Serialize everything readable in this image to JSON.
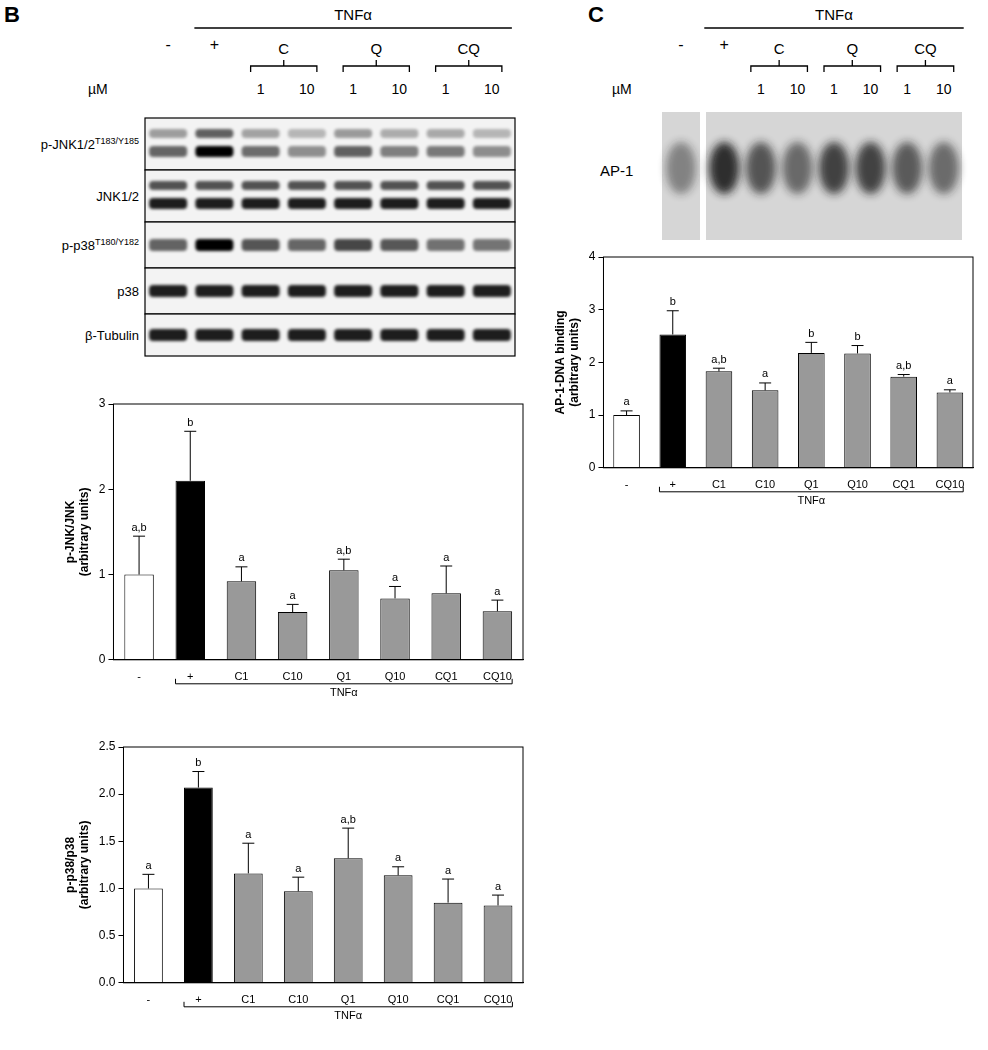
{
  "panel_labels": [
    "B",
    "C"
  ],
  "blot": {
    "header": {
      "treatment": "TNFα",
      "control": "-",
      "positive": "+",
      "unit": "µM",
      "groups": [
        "C",
        "Q",
        "CQ"
      ],
      "doses": [
        1,
        10
      ]
    },
    "rows": [
      {
        "label": "p-JNK1/2",
        "superscript": "T183/Y185"
      },
      {
        "label": "JNK1/2"
      },
      {
        "label": "p-p38",
        "superscript": "T180/Y182"
      },
      {
        "label": "p38"
      },
      {
        "label": "β-Tubulin"
      }
    ]
  },
  "emsa": {
    "header": {
      "treatment": "TNFα",
      "control": "-",
      "positive": "+",
      "unit": "µM",
      "groups": [
        "C",
        "Q",
        "CQ"
      ],
      "doses": [
        1,
        10
      ]
    },
    "label": "AP-1"
  },
  "chart_data": [
    {
      "type": "bar",
      "ylabel": [
        "p-JNK/JNK",
        "(arbitrary units)"
      ],
      "categories": [
        "-",
        "+",
        "C1",
        "C10",
        "Q1",
        "Q10",
        "CQ1",
        "CQ10"
      ],
      "values": [
        1.0,
        2.1,
        0.92,
        0.56,
        1.05,
        0.72,
        0.78,
        0.57
      ],
      "errors": [
        0.45,
        0.58,
        0.17,
        0.09,
        0.13,
        0.14,
        0.32,
        0.13
      ],
      "letters": [
        "a,b",
        "b",
        "a",
        "a",
        "a,b",
        "a",
        "a",
        "a"
      ],
      "colors": [
        "#ffffff",
        "#000000",
        "#999999",
        "#999999",
        "#999999",
        "#999999",
        "#999999",
        "#999999"
      ],
      "group_label": "TNFα",
      "ylim": [
        0,
        3
      ],
      "yticks": [
        0,
        1,
        2,
        3
      ],
      "grid": false
    },
    {
      "type": "bar",
      "ylabel": [
        "p-p38/p38",
        "(arbitrary units)"
      ],
      "categories": [
        "-",
        "+",
        "C1",
        "C10",
        "Q1",
        "Q10",
        "CQ1",
        "CQ10"
      ],
      "values": [
        1.0,
        2.07,
        1.16,
        0.97,
        1.32,
        1.14,
        0.85,
        0.82
      ],
      "errors": [
        0.15,
        0.17,
        0.32,
        0.15,
        0.32,
        0.09,
        0.25,
        0.11
      ],
      "letters": [
        "a",
        "b",
        "a",
        "a",
        "a,b",
        "a",
        "a",
        "a"
      ],
      "colors": [
        "#ffffff",
        "#000000",
        "#999999",
        "#999999",
        "#999999",
        "#999999",
        "#999999",
        "#999999"
      ],
      "group_label": "TNFα",
      "ylim": [
        0,
        2.5
      ],
      "yticks": [
        {
          "value": 0,
          "label": "0.0"
        },
        0.5,
        {
          "value": 1,
          "label": "1.0"
        },
        1.5,
        {
          "value": 2,
          "label": "2.0"
        },
        2.5
      ],
      "grid": false
    },
    {
      "type": "bar",
      "ylabel": [
        "AP-1-DNA binding",
        "(arbitrary units)"
      ],
      "categories": [
        "-",
        "+",
        "C1",
        "C10",
        "Q1",
        "Q10",
        "CQ1",
        "CQ10"
      ],
      "values": [
        1.0,
        2.53,
        1.83,
        1.47,
        2.18,
        2.17,
        1.73,
        1.43
      ],
      "errors": [
        0.08,
        0.45,
        0.06,
        0.14,
        0.2,
        0.15,
        0.04,
        0.05
      ],
      "letters": [
        "a",
        "b",
        "a,b",
        "a",
        "b",
        "b",
        "a,b",
        "a"
      ],
      "colors": [
        "#ffffff",
        "#000000",
        "#999999",
        "#999999",
        "#999999",
        "#999999",
        "#999999",
        "#999999"
      ],
      "group_label": "TNFα",
      "ylim": [
        0,
        4
      ],
      "yticks": [
        0,
        1,
        2,
        3,
        4
      ],
      "grid": false
    }
  ]
}
